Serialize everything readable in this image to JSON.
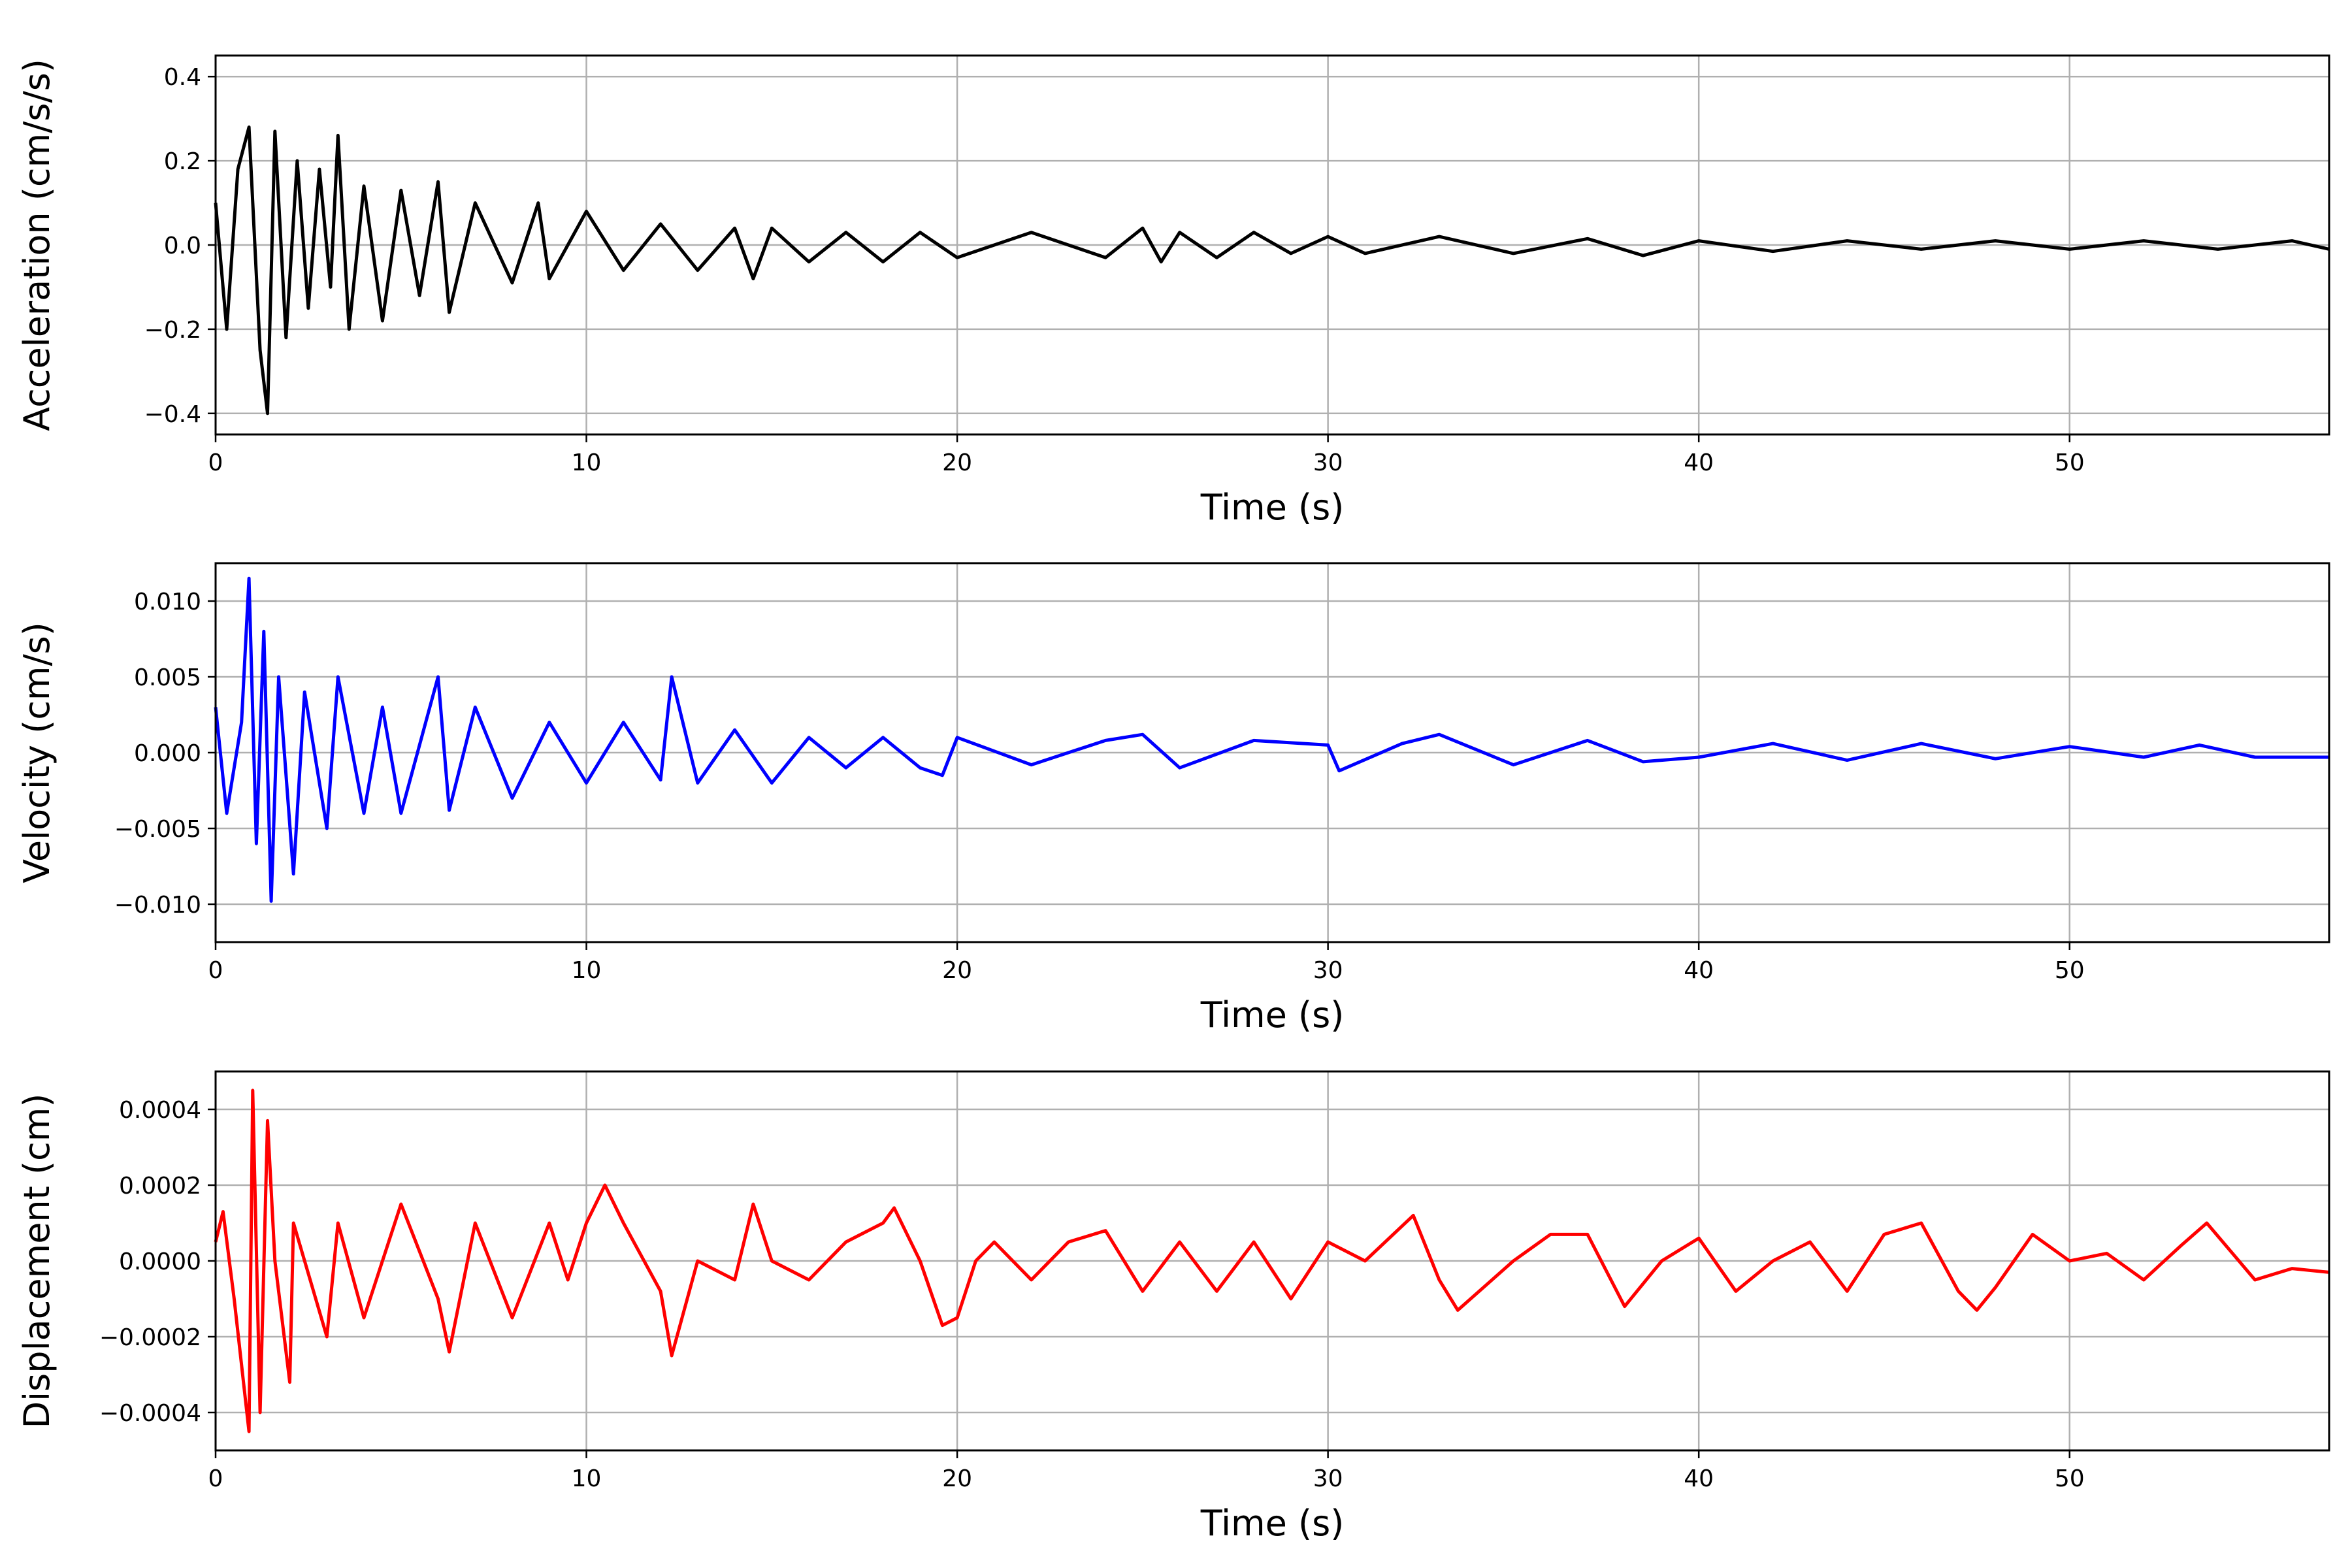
{
  "chart_data": [
    {
      "type": "line",
      "xlabel": "Time (s)",
      "ylabel": "Acceleration (cm/s/s)",
      "xlim": [
        0,
        57
      ],
      "ylim": [
        -0.45,
        0.45
      ],
      "xticks": [
        0,
        10,
        20,
        30,
        40,
        50
      ],
      "yticks": [
        -0.4,
        -0.2,
        0.0,
        0.2,
        0.4
      ],
      "ytick_labels": [
        "−0.4",
        "−0.2",
        "0.0",
        "0.2",
        "0.4"
      ],
      "grid": true,
      "color": "#000000",
      "series": [
        {
          "x": [
            0,
            0.3,
            0.6,
            0.9,
            1.2,
            1.4,
            1.6,
            1.9,
            2.2,
            2.5,
            2.8,
            3.1,
            3.3,
            3.6,
            4.0,
            4.5,
            5.0,
            5.5,
            6.0,
            6.3,
            7.0,
            8.0,
            8.7,
            9.0,
            10.0,
            11.0,
            12.0,
            13.0,
            14.0,
            14.5,
            15.0,
            16.0,
            17.0,
            18.0,
            19.0,
            20.0,
            22.0,
            24.0,
            25.0,
            25.5,
            26.0,
            27.0,
            28.0,
            29.0,
            30.0,
            31.0,
            33.0,
            35.0,
            37.0,
            38.5,
            40.0,
            42.0,
            44.0,
            46.0,
            48.0,
            50.0,
            52.0,
            54.0,
            56.0,
            57.0
          ],
          "values": [
            0.1,
            -0.2,
            0.18,
            0.28,
            -0.25,
            -0.4,
            0.27,
            -0.22,
            0.2,
            -0.15,
            0.18,
            -0.1,
            0.26,
            -0.2,
            0.14,
            -0.18,
            0.13,
            -0.12,
            0.15,
            -0.16,
            0.1,
            -0.09,
            0.1,
            -0.08,
            0.08,
            -0.06,
            0.05,
            -0.06,
            0.04,
            -0.08,
            0.04,
            -0.04,
            0.03,
            -0.04,
            0.03,
            -0.03,
            0.03,
            -0.03,
            0.04,
            -0.04,
            0.03,
            -0.03,
            0.03,
            -0.02,
            0.02,
            -0.02,
            0.02,
            -0.02,
            0.015,
            -0.025,
            0.01,
            -0.015,
            0.01,
            -0.01,
            0.01,
            -0.01,
            0.01,
            -0.01,
            0.01,
            -0.01
          ]
        }
      ]
    },
    {
      "type": "line",
      "xlabel": "Time (s)",
      "ylabel": "Velocity (cm/s)",
      "xlim": [
        0,
        57
      ],
      "ylim": [
        -0.0125,
        0.0125
      ],
      "xticks": [
        0,
        10,
        20,
        30,
        40,
        50
      ],
      "yticks": [
        -0.01,
        -0.005,
        0.0,
        0.005,
        0.01
      ],
      "ytick_labels": [
        "−0.010",
        "−0.005",
        "0.000",
        "0.005",
        "0.010"
      ],
      "grid": true,
      "color": "#0000ff",
      "series": [
        {
          "x": [
            0,
            0.3,
            0.7,
            0.9,
            1.1,
            1.3,
            1.5,
            1.7,
            2.1,
            2.4,
            3.0,
            3.3,
            4.0,
            4.5,
            5.0,
            6.0,
            6.3,
            7.0,
            8.0,
            9.0,
            10.0,
            11.0,
            12.0,
            12.3,
            13.0,
            14.0,
            15.0,
            16.0,
            17.0,
            18.0,
            19.0,
            19.6,
            20.0,
            22.0,
            24.0,
            25.0,
            26.0,
            28.0,
            30.0,
            30.3,
            32.0,
            33.0,
            35.0,
            37.0,
            38.5,
            40.0,
            42.0,
            44.0,
            46.0,
            48.0,
            50.0,
            52.0,
            53.5,
            55.0,
            57.0
          ],
          "values": [
            0.003,
            -0.004,
            0.002,
            0.0115,
            -0.006,
            0.008,
            -0.0098,
            0.005,
            -0.008,
            0.004,
            -0.005,
            0.005,
            -0.004,
            0.003,
            -0.004,
            0.005,
            -0.0038,
            0.003,
            -0.003,
            0.002,
            -0.002,
            0.002,
            -0.0018,
            0.005,
            -0.002,
            0.0015,
            -0.002,
            0.001,
            -0.001,
            0.001,
            -0.001,
            -0.0015,
            0.001,
            -0.0008,
            0.0008,
            0.0012,
            -0.001,
            0.0008,
            0.0005,
            -0.0012,
            0.0006,
            0.0012,
            -0.0008,
            0.0008,
            -0.0006,
            -0.0003,
            0.0006,
            -0.0005,
            0.0006,
            -0.0004,
            0.0004,
            -0.0003,
            0.0005,
            -0.0003,
            -0.0003
          ]
        }
      ]
    },
    {
      "type": "line",
      "xlabel": "Time (s)",
      "ylabel": "Displacement (cm)",
      "xlim": [
        0,
        57
      ],
      "ylim": [
        -0.0005,
        0.0005
      ],
      "xticks": [
        0,
        10,
        20,
        30,
        40,
        50
      ],
      "yticks": [
        -0.0004,
        -0.0002,
        0.0,
        0.0002,
        0.0004
      ],
      "ytick_labels": [
        "−0.0004",
        "−0.0002",
        "0.0000",
        "0.0002",
        "0.0004"
      ],
      "grid": true,
      "color": "#ff0000",
      "series": [
        {
          "x": [
            0,
            0.2,
            0.5,
            0.9,
            1.0,
            1.2,
            1.4,
            1.6,
            2.0,
            2.1,
            3.0,
            3.3,
            4.0,
            5.0,
            6.0,
            6.3,
            7.0,
            8.0,
            9.0,
            9.5,
            10.0,
            10.5,
            11.0,
            12.0,
            12.3,
            13.0,
            14.0,
            14.5,
            15.0,
            16.0,
            17.0,
            18.0,
            18.3,
            19.0,
            19.6,
            20.0,
            20.5,
            21.0,
            22.0,
            23.0,
            24.0,
            25.0,
            26.0,
            27.0,
            28.0,
            29.0,
            30.0,
            31.0,
            32.3,
            33.0,
            33.5,
            35.0,
            36.0,
            37.0,
            38.0,
            39.0,
            40.0,
            41.0,
            42.0,
            43.0,
            44.0,
            45.0,
            46.0,
            47.0,
            47.5,
            48.0,
            49.0,
            50.0,
            51.0,
            52.0,
            53.0,
            53.7,
            55.0,
            56.0,
            57.0
          ],
          "values": [
            5e-05,
            0.00013,
            -0.0001,
            -0.00045,
            0.00045,
            -0.0004,
            0.00037,
            0.0,
            -0.00032,
            0.0001,
            -0.0002,
            0.0001,
            -0.00015,
            0.00015,
            -0.0001,
            -0.00024,
            0.0001,
            -0.00015,
            0.0001,
            -5e-05,
            0.0001,
            0.0002,
            0.0001,
            -8e-05,
            -0.00025,
            0.0,
            -5e-05,
            0.00015,
            0.0,
            -5e-05,
            5e-05,
            0.0001,
            0.00014,
            0.0,
            -0.00017,
            -0.00015,
            0.0,
            5e-05,
            -5e-05,
            5e-05,
            8e-05,
            -8e-05,
            5e-05,
            -8e-05,
            5e-05,
            -0.0001,
            5e-05,
            0.0,
            0.00012,
            -5e-05,
            -0.00013,
            0.0,
            7e-05,
            7e-05,
            -0.00012,
            0.0,
            6e-05,
            -8e-05,
            0.0,
            5e-05,
            -8e-05,
            7e-05,
            0.0001,
            -8e-05,
            -0.00013,
            -7e-05,
            7e-05,
            0.0,
            2e-05,
            -5e-05,
            4e-05,
            0.0001,
            -5e-05,
            -2e-05,
            -3e-05
          ]
        }
      ]
    }
  ]
}
